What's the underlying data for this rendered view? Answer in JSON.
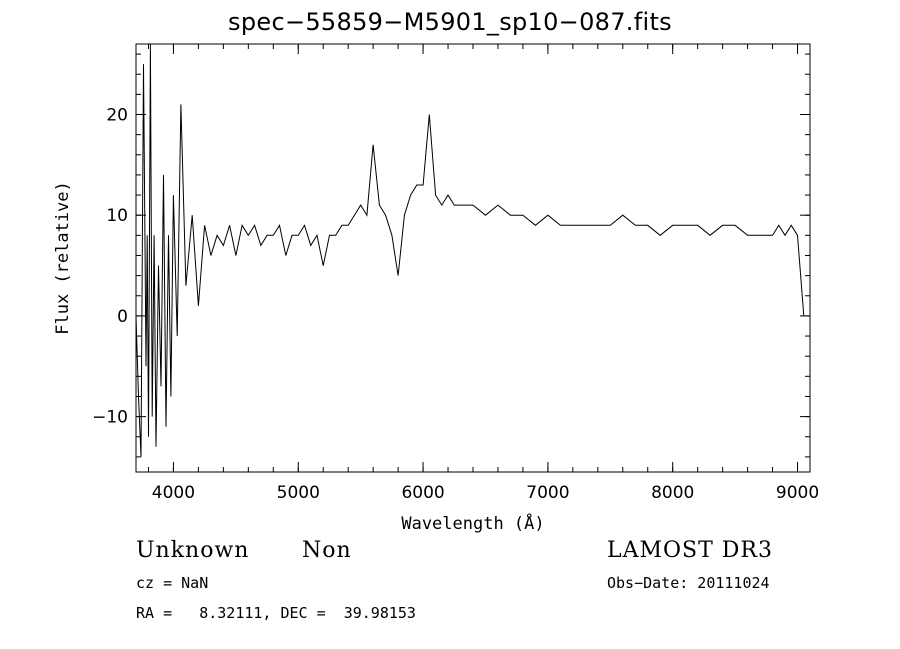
{
  "chart_data": {
    "type": "line",
    "title": "spec−55859−M5901_sp10−087.fits",
    "xlabel": "Wavelength (Å)",
    "ylabel": "Flux (relative)",
    "xlim": [
      3700,
      9100
    ],
    "ylim": [
      -15.5,
      27
    ],
    "xticks": [
      4000,
      5000,
      6000,
      7000,
      8000,
      9000
    ],
    "xtick_labels": [
      "4000",
      "5000",
      "6000",
      "7000",
      "8000",
      "9000"
    ],
    "yticks": [
      -10,
      0,
      10,
      20
    ],
    "ytick_labels": [
      "−10",
      "0",
      "10",
      "20"
    ],
    "grid": false,
    "series": [
      {
        "name": "",
        "x": [
          3700,
          3720,
          3740,
          3760,
          3780,
          3790,
          3800,
          3815,
          3830,
          3845,
          3860,
          3880,
          3900,
          3920,
          3940,
          3960,
          3980,
          4000,
          4030,
          4060,
          4100,
          4150,
          4200,
          4250,
          4300,
          4350,
          4400,
          4450,
          4500,
          4550,
          4600,
          4650,
          4700,
          4750,
          4800,
          4850,
          4900,
          4950,
          5000,
          5050,
          5100,
          5150,
          5200,
          5250,
          5300,
          5350,
          5400,
          5450,
          5500,
          5550,
          5600,
          5650,
          5700,
          5750,
          5800,
          5850,
          5900,
          5950,
          6000,
          6050,
          6100,
          6150,
          6200,
          6250,
          6300,
          6400,
          6500,
          6600,
          6700,
          6800,
          6900,
          7000,
          7100,
          7200,
          7300,
          7400,
          7500,
          7600,
          7700,
          7800,
          7900,
          8000,
          8100,
          8200,
          8300,
          8400,
          8500,
          8600,
          8700,
          8800,
          8850,
          8900,
          8950,
          9000,
          9050
        ],
        "values": [
          0,
          -8,
          -14,
          25,
          -5,
          8,
          -12,
          27,
          -10,
          8,
          -13,
          5,
          -7,
          14,
          -11,
          8,
          -8,
          12,
          -2,
          21,
          3,
          10,
          1,
          9,
          6,
          8,
          7,
          9,
          6,
          9,
          8,
          9,
          7,
          8,
          8,
          9,
          6,
          8,
          8,
          9,
          7,
          8,
          5,
          8,
          8,
          9,
          9,
          10,
          11,
          10,
          17,
          11,
          10,
          8,
          4,
          10,
          12,
          13,
          13,
          20,
          12,
          11,
          12,
          11,
          11,
          11,
          10,
          11,
          10,
          10,
          9,
          10,
          9,
          9,
          9,
          9,
          9,
          10,
          9,
          9,
          8,
          9,
          9,
          9,
          8,
          9,
          9,
          8,
          8,
          8,
          9,
          8,
          9,
          8,
          0
        ]
      }
    ]
  },
  "footer": {
    "object_class": "Unknown",
    "subclass": "Non",
    "survey": "LAMOST DR3",
    "cz": "cz = NaN",
    "obs_date": "Obs−Date: 20111024",
    "coords": "RA =   8.32111, DEC =  39.98153"
  }
}
